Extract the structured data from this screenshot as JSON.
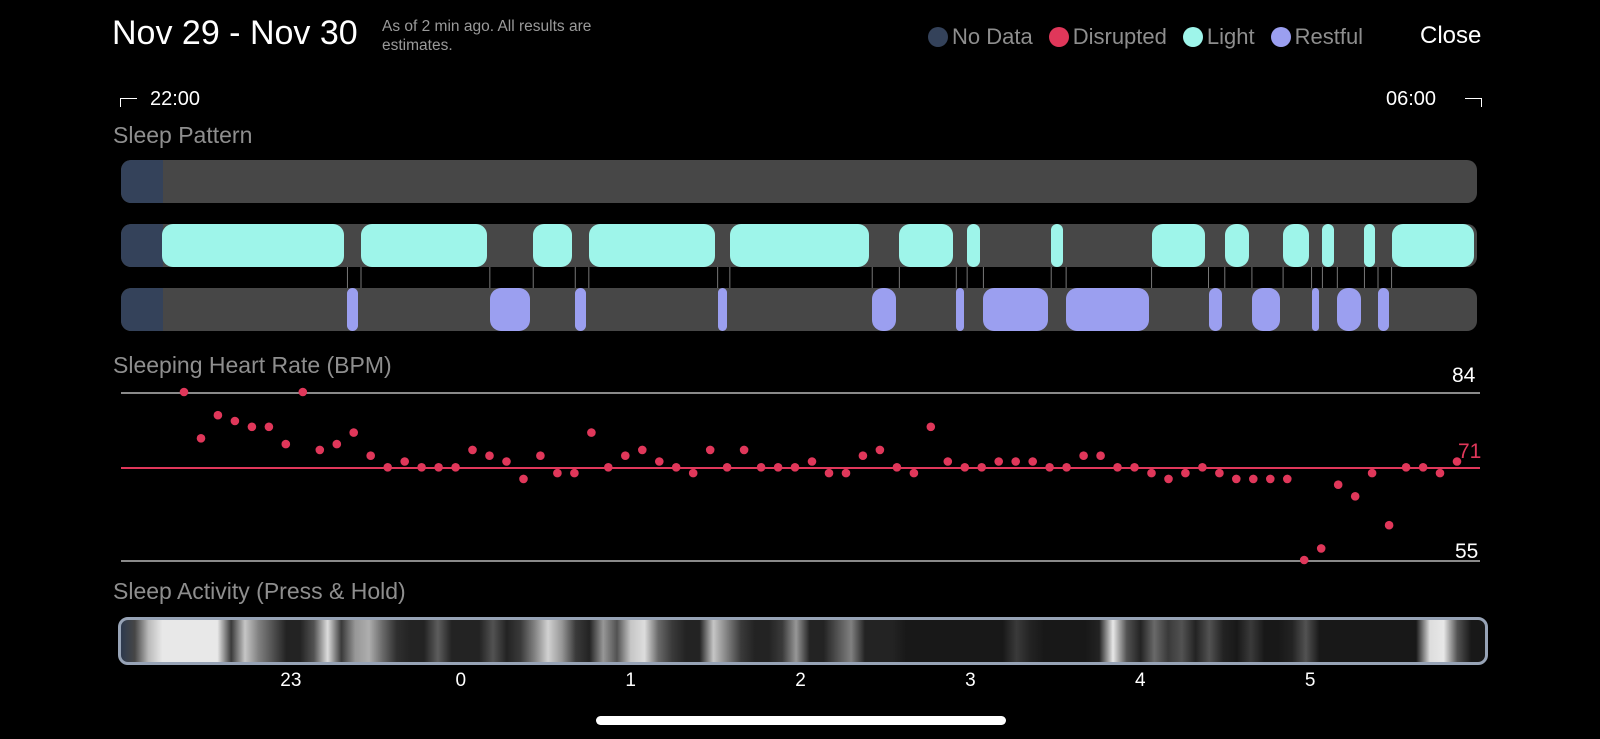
{
  "header": {
    "date_range": "Nov 29 - Nov 30",
    "as_of": "As of 2 min ago. All results are estimates.",
    "close_label": "Close"
  },
  "legend": [
    {
      "label": "No Data",
      "color": "#34425a"
    },
    {
      "label": "Disrupted",
      "color": "#e0375a"
    },
    {
      "label": "Light",
      "color": "#9ef5ea"
    },
    {
      "label": "Restful",
      "color": "#9b9ff0"
    }
  ],
  "time_range": {
    "start": "22:00",
    "end": "06:00"
  },
  "sleep_pattern": {
    "title": "Sleep Pattern",
    "rows": {
      "disrupted": [],
      "light": [
        [
          0.03,
          0.167
        ],
        [
          0.177,
          0.272
        ],
        [
          0.304,
          0.335
        ],
        [
          0.345,
          0.44
        ],
        [
          0.449,
          0.554
        ],
        [
          0.574,
          0.616
        ],
        [
          0.624,
          0.636
        ],
        [
          0.686,
          0.697
        ],
        [
          0.76,
          0.802
        ],
        [
          0.814,
          0.834
        ],
        [
          0.857,
          0.878
        ],
        [
          0.886,
          0.897
        ],
        [
          0.917,
          0.927
        ],
        [
          0.937,
          1.0
        ]
      ],
      "restful": [
        [
          0.167,
          0.177
        ],
        [
          0.272,
          0.304
        ],
        [
          0.335,
          0.345
        ],
        [
          0.44,
          0.449
        ],
        [
          0.554,
          0.574
        ],
        [
          0.616,
          0.624
        ],
        [
          0.636,
          0.686
        ],
        [
          0.697,
          0.76
        ],
        [
          0.802,
          0.814
        ],
        [
          0.834,
          0.857
        ],
        [
          0.878,
          0.886
        ],
        [
          0.897,
          0.917
        ],
        [
          0.927,
          0.937
        ]
      ]
    }
  },
  "heart_rate": {
    "title": "Sleeping Heart Rate (BPM)",
    "max_label": "84",
    "avg_label": "71",
    "min_label": "55",
    "max": 84,
    "avg": 71,
    "min": 55,
    "points": [
      84,
      76,
      80,
      79,
      78,
      78,
      75,
      84,
      74,
      75,
      77,
      73,
      71,
      72,
      71,
      71,
      71,
      74,
      73,
      72,
      69,
      73,
      70,
      70,
      77,
      71,
      73,
      74,
      72,
      71,
      70,
      74,
      71,
      74,
      71,
      71,
      71,
      72,
      70,
      70,
      73,
      74,
      71,
      70,
      78,
      72,
      71,
      71,
      72,
      72,
      72,
      71,
      71,
      73,
      73,
      71,
      71,
      70,
      69,
      70,
      71,
      70,
      69,
      69,
      69,
      69,
      55,
      57,
      68,
      66,
      70,
      61,
      71,
      71,
      70,
      72
    ]
  },
  "activity": {
    "title": "Sleep Activity (Press & Hold)",
    "ticks": [
      "23",
      "0",
      "1",
      "2",
      "3",
      "4",
      "5"
    ],
    "tick_hours": [
      23,
      24,
      25,
      26,
      27,
      28,
      29
    ],
    "intensity": [
      0.02,
      0.25,
      0.75,
      0.95,
      0.95,
      0.95,
      0.95,
      0.95,
      0.2,
      0.8,
      0.5,
      0.3,
      0.1,
      0.1,
      0.3,
      0.9,
      0.2,
      0.6,
      0.7,
      0.4,
      0.15,
      0.1,
      0.1,
      0.35,
      0.1,
      0.1,
      0.1,
      0.3,
      0.1,
      0.2,
      0.5,
      0.85,
      0.6,
      0.2,
      0.1,
      0.6,
      0.3,
      0.8,
      0.9,
      0.4,
      0.2,
      0.1,
      0.1,
      0.8,
      0.5,
      0.2,
      0.1,
      0.1,
      0.2,
      0.6,
      0.1,
      0.1,
      0.3,
      0.5,
      0.1,
      0.1,
      0.1,
      0.05,
      0.05,
      0.05,
      0.05,
      0.05,
      0.05,
      0.05,
      0.05,
      0.2,
      0.1,
      0.05,
      0.05,
      0.05,
      0.05,
      0.1,
      0.95,
      0.3,
      0.1,
      0.4,
      0.2,
      0.3,
      0.1,
      0.3,
      0.1,
      0.05,
      0.2,
      0.05,
      0.05,
      0.1,
      0.3,
      0.05,
      0.05,
      0.05,
      0.05,
      0.05,
      0.05,
      0.05,
      0.05,
      0.9,
      0.95,
      0.3,
      0.05,
      0.05
    ]
  }
}
